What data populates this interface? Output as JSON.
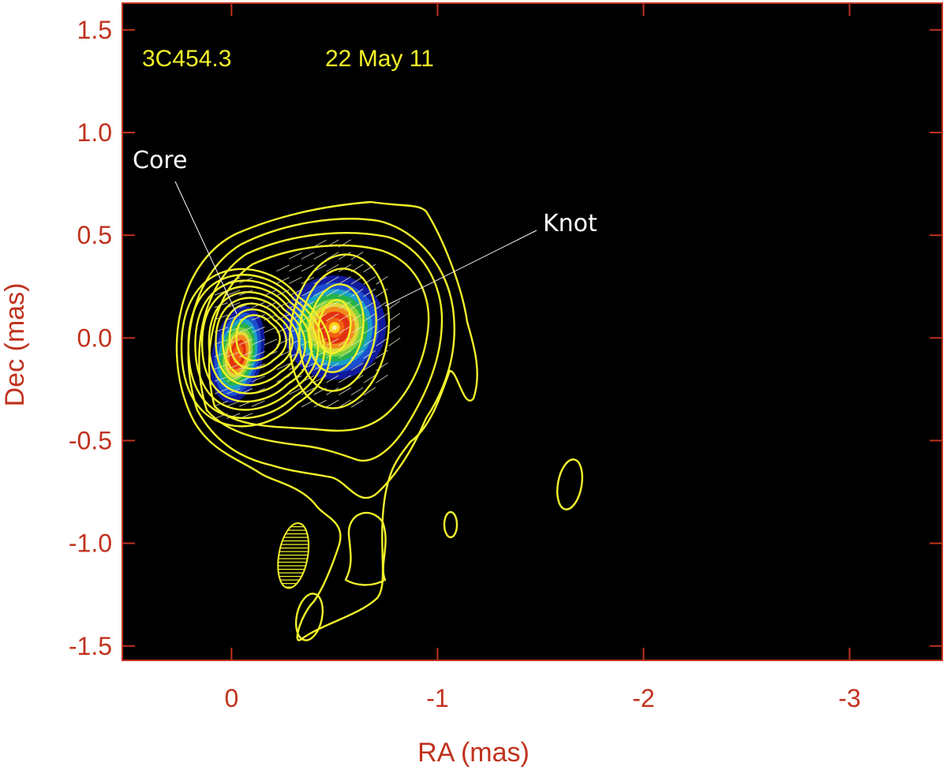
{
  "chart_data": {
    "type": "heatmap",
    "xlabel": "RA (mas)",
    "ylabel": "Dec (mas)",
    "xlim": [
      0.53,
      -3.45
    ],
    "ylim": [
      -1.57,
      1.63
    ],
    "x_ticks": [
      0,
      -1,
      -2,
      -3
    ],
    "x_tick_labels": [
      "0",
      "-1",
      "-2",
      "-3"
    ],
    "y_ticks": [
      1.5,
      1.0,
      0.5,
      0.0,
      -0.5,
      -1.0,
      -1.5
    ],
    "y_tick_labels": [
      "1.5",
      "1.0",
      "0.5",
      "0.0",
      "-0.5",
      "-1.0",
      "-1.5"
    ],
    "source_label": "3C454.3",
    "date_label": "22 May 11",
    "background": "black",
    "contour_color": "#f2f22a",
    "axis_color": "#c0321e",
    "intensity_peaks": [
      {
        "ra": -0.03,
        "dec": -0.08,
        "peak": 0.85,
        "sigma_ra": 0.06,
        "sigma_dec": 0.16
      },
      {
        "ra": -0.5,
        "dec": 0.05,
        "peak": 1.0,
        "sigma_ra": 0.12,
        "sigma_dec": 0.17
      }
    ],
    "annotations": [
      {
        "text": "Core",
        "ra": 0.0,
        "dec": -0.05
      },
      {
        "text": "Knot",
        "ra": -0.75,
        "dec": 0.18
      }
    ],
    "beam": {
      "ra": -0.3,
      "dec": -1.06,
      "major": 0.32,
      "minor": 0.14,
      "pa_deg": 10
    }
  }
}
